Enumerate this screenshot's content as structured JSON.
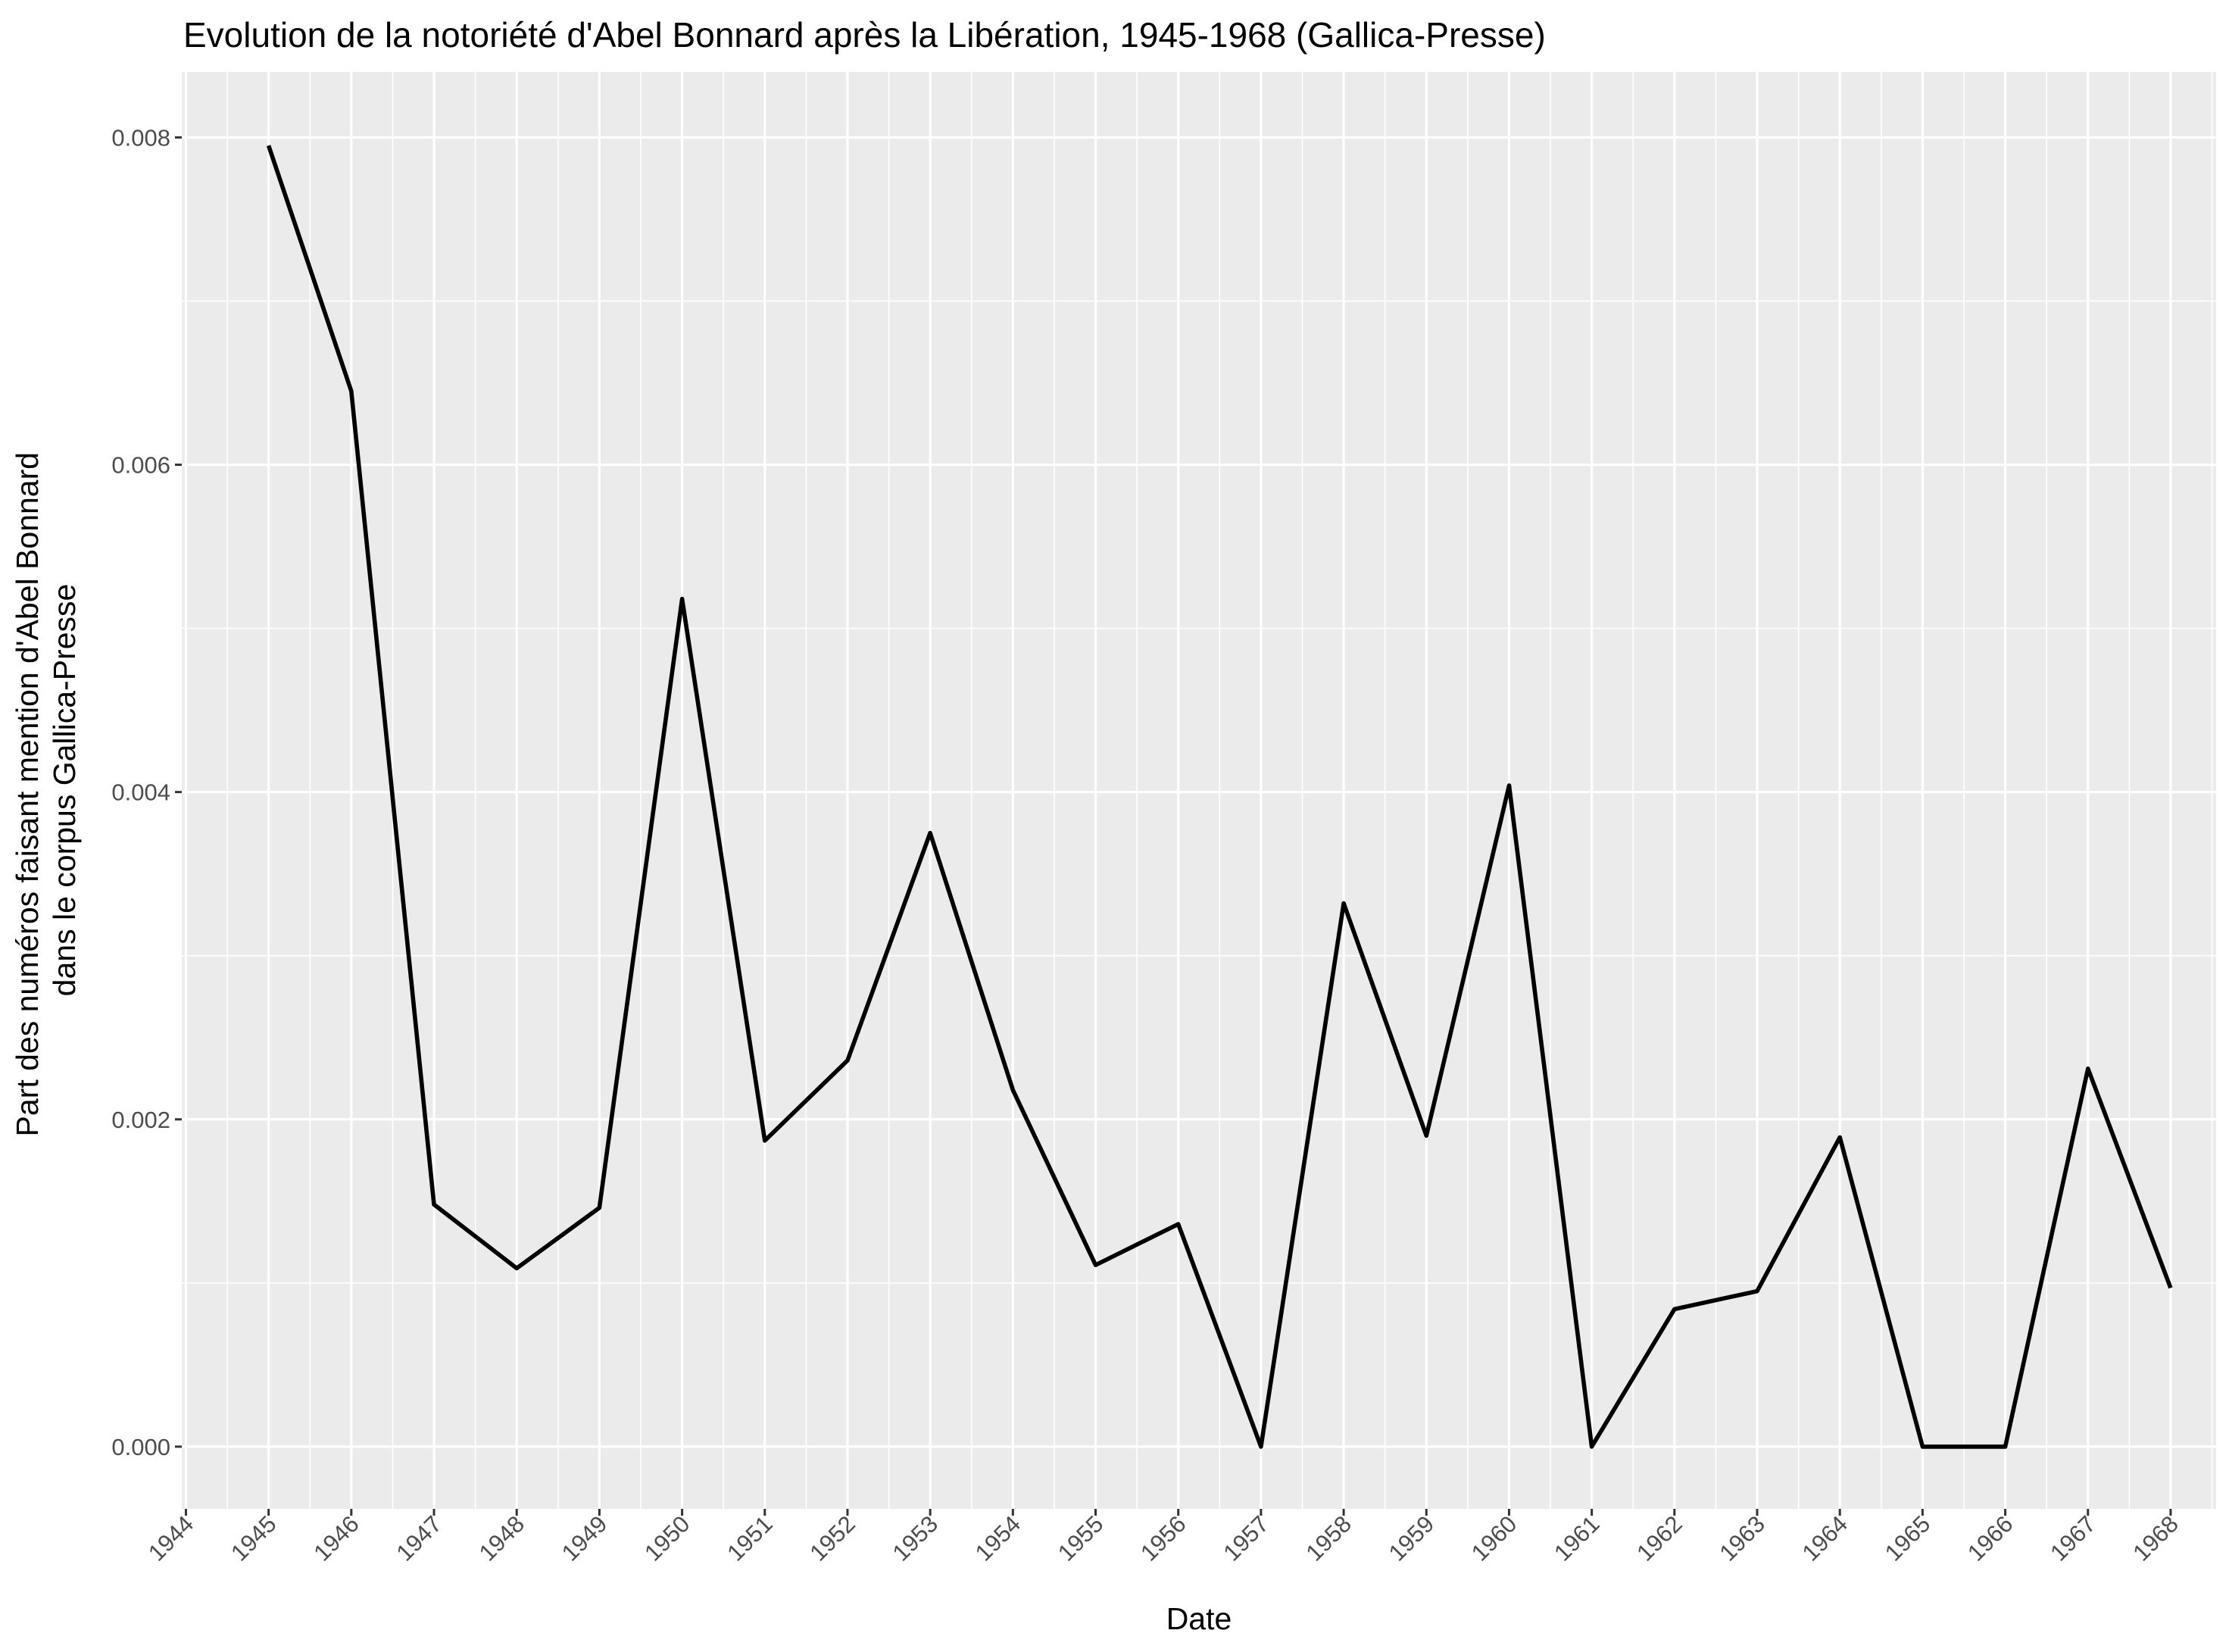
{
  "chart_data": {
    "type": "line",
    "title": "Evolution de la notoriété d'Abel Bonnard après la Libération, 1945-1968 (Gallica-Presse)",
    "xlabel": "Date",
    "ylabel_lines": [
      "Part des numéros faisant mention d'Abel Bonnard",
      "dans le corpus Gallica-Presse"
    ],
    "x_ticks": [
      "1944",
      "1945",
      "1946",
      "1947",
      "1948",
      "1949",
      "1950",
      "1951",
      "1952",
      "1953",
      "1954",
      "1955",
      "1956",
      "1957",
      "1958",
      "1959",
      "1960",
      "1961",
      "1962",
      "1963",
      "1964",
      "1965",
      "1966",
      "1967",
      "1968"
    ],
    "y_ticks": [
      "0.000",
      "0.002",
      "0.004",
      "0.006",
      "0.008"
    ],
    "xlim": [
      1943.95,
      1968.55
    ],
    "ylim": [
      -0.00038,
      0.0084
    ],
    "x": [
      1945,
      1946,
      1947,
      1948,
      1949,
      1950,
      1951,
      1952,
      1953,
      1954,
      1955,
      1956,
      1957,
      1958,
      1959,
      1960,
      1961,
      1962,
      1963,
      1964,
      1965,
      1966,
      1967,
      1968
    ],
    "series": [
      {
        "values": [
          0.00795,
          0.00645,
          0.00148,
          0.00109,
          0.00146,
          0.00518,
          0.00187,
          0.00236,
          0.00375,
          0.00218,
          0.00111,
          0.00136,
          0.0,
          0.00332,
          0.0019,
          0.00404,
          0.0,
          0.00084,
          0.00095,
          0.00189,
          0.0,
          0.0,
          0.00231,
          0.00097
        ],
        "color": "#000000"
      }
    ],
    "grid": true,
    "legend": "none",
    "colors": {
      "panel_background": "#ebebeb",
      "grid_line": "#ffffff",
      "line": "#000000",
      "tick_label": "#4d4d4d",
      "axis_tick": "#333333"
    }
  }
}
